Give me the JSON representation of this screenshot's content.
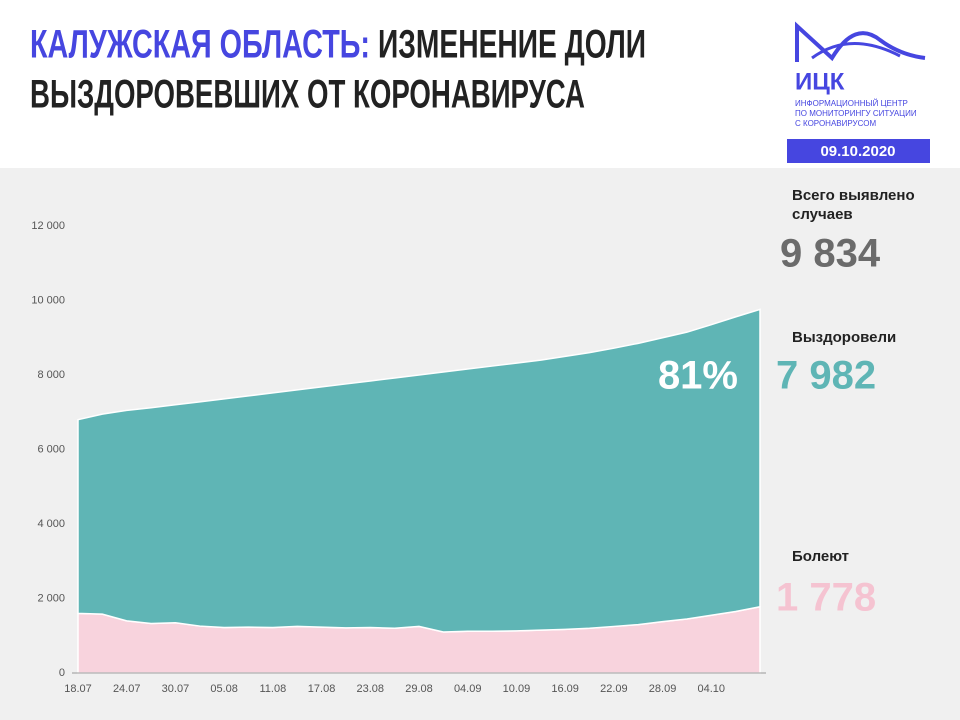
{
  "header": {
    "title_region": "КАЛУЖСКАЯ ОБЛАСТЬ:",
    "title_rest_line1": "ИЗМЕНЕНИЕ ДОЛИ",
    "title_line2": "ВЫЗДОРОВЕВШИХ ОТ КОРОНАВИРУСА",
    "logo": "ИЦК",
    "logo_caption": [
      "ИНФОРМАЦИОННЫЙ ЦЕНТР",
      "ПО МОНИТОРИНГУ СИТУАЦИИ",
      "С КОРОНАВИРУСОМ"
    ],
    "date": "09.10.2020"
  },
  "stats": [
    {
      "label": [
        "Всего выявлено",
        "случаев"
      ],
      "value": "9 834"
    },
    {
      "label": [
        "Выздоровели"
      ],
      "value": "7 982"
    },
    {
      "label": [
        "Болеют"
      ],
      "value": "1 778"
    }
  ],
  "chart_data": {
    "type": "stacked-area",
    "annotation": "81%",
    "categories": [
      "18.07",
      null,
      "24.07",
      null,
      "30.07",
      null,
      "05.08",
      null,
      "11.08",
      null,
      "17.08",
      null,
      "23.08",
      null,
      "29.08",
      null,
      "04.09",
      null,
      "10.09",
      null,
      "16.09",
      null,
      "22.09",
      null,
      "28.09",
      null,
      "04.10",
      null,
      null
    ],
    "series": [
      {
        "name": "Болеют",
        "color": "#f8d3dd",
        "values": [
          1600,
          1580,
          1400,
          1330,
          1350,
          1260,
          1220,
          1230,
          1220,
          1250,
          1230,
          1210,
          1220,
          1200,
          1250,
          1100,
          1120,
          1120,
          1130,
          1150,
          1170,
          1200,
          1250,
          1300,
          1380,
          1450,
          1550,
          1650,
          1778
        ]
      },
      {
        "name": "Выздоровели",
        "color": "#5fb5b5",
        "values": [
          5200,
          5370,
          5650,
          5790,
          5850,
          6020,
          6140,
          6210,
          6300,
          6350,
          6450,
          6550,
          6620,
          6720,
          6750,
          6980,
          7040,
          7120,
          7190,
          7250,
          7330,
          7400,
          7470,
          7550,
          7620,
          7700,
          7800,
          7910,
          7982
        ]
      }
    ],
    "ylim": [
      0,
      12000
    ],
    "yticks": [
      0,
      {
        "value": 2000,
        "label": "2 000"
      },
      {
        "value": 4000,
        "label": "4 000"
      },
      {
        "value": 6000,
        "label": "6 000"
      },
      {
        "value": 8000,
        "label": "8 000"
      },
      {
        "value": 10000,
        "label": "10 000"
      },
      {
        "value": 12000,
        "label": "12 000"
      }
    ]
  }
}
